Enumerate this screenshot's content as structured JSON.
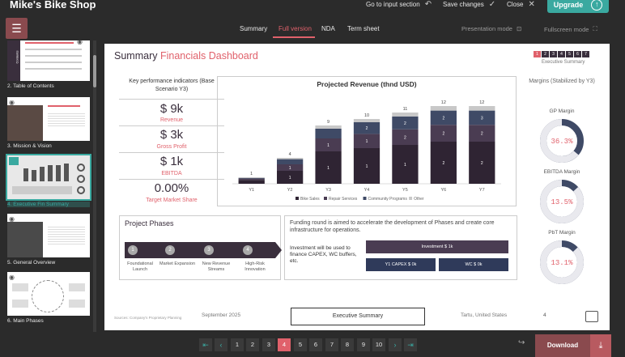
{
  "app": {
    "title": "Mike's Bike Shop"
  },
  "top_actions": {
    "go_to_input": "Go to input section",
    "save_changes": "Save changes",
    "close": "Close",
    "upgrade": "Upgrade"
  },
  "tabs": [
    {
      "label": "Summary"
    },
    {
      "label": "Full version"
    },
    {
      "label": "NDA"
    },
    {
      "label": "Term sheet"
    }
  ],
  "modes": {
    "presentation": "Presentation mode",
    "fullscreen": "Fullscreen mode"
  },
  "sidebar": {
    "items": [
      {
        "label": "2. Table of Contents",
        "thumb_text": "Contents"
      },
      {
        "label": "3. Mission & Vision"
      },
      {
        "label": "4. Executive Fin Summary"
      },
      {
        "label": "5. General Overview"
      },
      {
        "label": "6. Main Phases"
      }
    ]
  },
  "slide": {
    "title_main": "Summary",
    "title_accent": "Financials Dashboard",
    "pager_sub": "Executive Summary",
    "kpi": {
      "title": "Key performance indicators (Base Scenario Y3)",
      "items": [
        {
          "value": "$ 9k",
          "label": "Revenue"
        },
        {
          "value": "$ 3k",
          "label": "Gross Profit"
        },
        {
          "value": "$ 1k",
          "label": "EBITDA"
        },
        {
          "value": "0.00%",
          "label": "Target Market Share"
        }
      ]
    },
    "margins": {
      "title": "Margins (Stabilized by Y3)",
      "items": [
        {
          "label": "GP Margin",
          "value": "36.3%"
        },
        {
          "label": "EBITDA Margin",
          "value": "13.5%"
        },
        {
          "label": "PbT Margin",
          "value": "13.1%"
        }
      ]
    },
    "phases": {
      "title": "Project Phases",
      "items": [
        {
          "label": "Foundational Launch"
        },
        {
          "label": "Market Expansion"
        },
        {
          "label": "New Revenue Streams"
        },
        {
          "label": "High-Risk Innovation"
        }
      ]
    },
    "funding": {
      "text": "Funding round is aimed to accelerate the development of Phases and create core infrastructure for operations.",
      "invest_text": "Investment will be used to finance CAPEX, WC buffers, etc.",
      "investment": "Investment $ 1k",
      "capex": "Y1 CAPEX $ 0k",
      "wc": "WC $ 0k"
    },
    "footer": {
      "source": "Sources: Company's Proprietary Planning",
      "date": "September 2025",
      "box": "Executive Summary",
      "location": "Tartu, United States",
      "page": "4"
    }
  },
  "chart_data": {
    "type": "bar",
    "title": "Projected Revenue (thnd USD)",
    "categories": [
      "Y1",
      "Y2",
      "Y3",
      "Y4",
      "Y5",
      "Y6",
      "Y7"
    ],
    "totals": [
      1,
      4,
      9,
      10,
      11,
      12,
      12
    ],
    "series": [
      {
        "name": "Bike Sales",
        "values": [
          0.6,
          2,
          5,
          5.5,
          6,
          6.5,
          6.5
        ]
      },
      {
        "name": "Repair Services",
        "values": [
          0.2,
          1,
          2,
          2.2,
          2.4,
          2.6,
          2.6
        ]
      },
      {
        "name": "Community Programs",
        "values": [
          0.1,
          0.8,
          1.5,
          1.8,
          2,
          2.2,
          2.2
        ]
      },
      {
        "name": "Other",
        "values": [
          0.1,
          0.2,
          0.5,
          0.5,
          0.6,
          0.7,
          0.7
        ]
      }
    ],
    "data_labels": {
      "Y2": [
        "1",
        "1"
      ],
      "Y3": [
        "1",
        "1"
      ],
      "Y4": [
        "1",
        "1",
        "2"
      ],
      "Y5": [
        "1",
        "2",
        "2"
      ],
      "Y6": [
        "2",
        "2",
        "2"
      ],
      "Y7": [
        "2",
        "2",
        "3"
      ]
    },
    "ylim": [
      0,
      14
    ],
    "colors": [
      "#2f2433",
      "#4a3c52",
      "#3f4a66",
      "#c8c8c8"
    ],
    "legend_position": "bottom"
  },
  "pagination": {
    "pages": [
      "1",
      "2",
      "3",
      "4",
      "5",
      "6",
      "7",
      "8",
      "9",
      "10"
    ],
    "current": "4",
    "download": "Download"
  },
  "colors": {
    "accent": "#e0616b",
    "teal": "#3aa9a0",
    "dark": "#3a2f3d",
    "bg": "#2b2b2b"
  }
}
